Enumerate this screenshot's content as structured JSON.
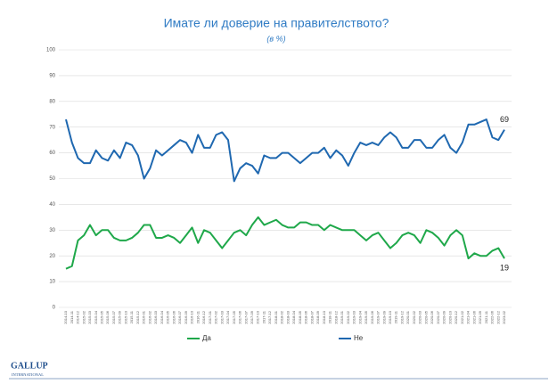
{
  "chart_data": {
    "type": "line",
    "title": "Имате ли доверие на правителството?",
    "subtitle": "(в %)",
    "x": [
      "2014-10",
      "2014-11",
      "2014-12",
      "2015-02",
      "2015-03",
      "2015-04",
      "2015-05",
      "2015-06",
      "2015-07",
      "2015-09",
      "2015-10",
      "2015-11",
      "2015-12",
      "2016-01",
      "2016-02",
      "2016-03",
      "2016-04",
      "2016-05",
      "2016-06",
      "2016-07",
      "2016-09",
      "2016-10",
      "2016-11",
      "2016-12",
      "2017-01",
      "2017-02",
      "2017-03",
      "2017-04",
      "2017-05",
      "2017-06",
      "2017-07",
      "2017-09",
      "2017-10",
      "2017-11",
      "2017-12",
      "2018-01",
      "2018-02",
      "2018-03",
      "2018-04",
      "2018-05",
      "2018-06",
      "2018-07",
      "2018-09",
      "2018-10",
      "2018-11",
      "2018-12",
      "2019-01",
      "2019-02",
      "2019-03",
      "2019-04",
      "2019-05",
      "2019-06",
      "2019-07",
      "2019-09",
      "2019-10",
      "2019-11",
      "2019-12",
      "2020-01",
      "2020-02",
      "2020-03",
      "2020-05",
      "2020-06",
      "2020-07",
      "2020-09",
      "2020-10",
      "2020-12",
      "2021-02",
      "2021-04",
      "2021-06",
      "2021-09",
      "2021-11",
      "2022-06",
      "2022-12",
      "2023-02"
    ],
    "series": [
      {
        "name": "Да",
        "color": "#1fa84a",
        "values": [
          15,
          16,
          26,
          28,
          32,
          28,
          30,
          30,
          27,
          26,
          26,
          27,
          29,
          32,
          32,
          27,
          27,
          28,
          27,
          25,
          28,
          31,
          25,
          30,
          29,
          26,
          23,
          26,
          29,
          30,
          28,
          32,
          35,
          32,
          33,
          34,
          32,
          31,
          31,
          33,
          33,
          32,
          32,
          30,
          32,
          31,
          30,
          30,
          30,
          28,
          26,
          28,
          29,
          26,
          23,
          25,
          28,
          29,
          28,
          25,
          30,
          29,
          27,
          24,
          28,
          30,
          28,
          19,
          21,
          20,
          20,
          22,
          23,
          19
        ]
      },
      {
        "name": "Не",
        "color": "#1f68b0",
        "values": [
          73,
          64,
          58,
          56,
          56,
          61,
          58,
          57,
          61,
          58,
          64,
          63,
          59,
          50,
          54,
          61,
          59,
          61,
          63,
          65,
          64,
          60,
          67,
          62,
          62,
          67,
          68,
          65,
          49,
          54,
          56,
          55,
          52,
          59,
          58,
          58,
          60,
          60,
          58,
          56,
          58,
          60,
          60,
          62,
          58,
          61,
          59,
          55,
          60,
          64,
          63,
          64,
          63,
          66,
          68,
          66,
          62,
          62,
          65,
          65,
          62,
          62,
          65,
          67,
          62,
          60,
          64,
          71,
          71,
          72,
          73,
          66,
          65,
          69
        ]
      }
    ],
    "ylim": [
      0,
      100
    ],
    "yticks": [
      0,
      10,
      20,
      30,
      40,
      50,
      60,
      70,
      80,
      90,
      100
    ],
    "grid": true,
    "legend": "bottom",
    "logo": {
      "name": "GALLUP",
      "sub": "INTERNATIONAL"
    }
  }
}
